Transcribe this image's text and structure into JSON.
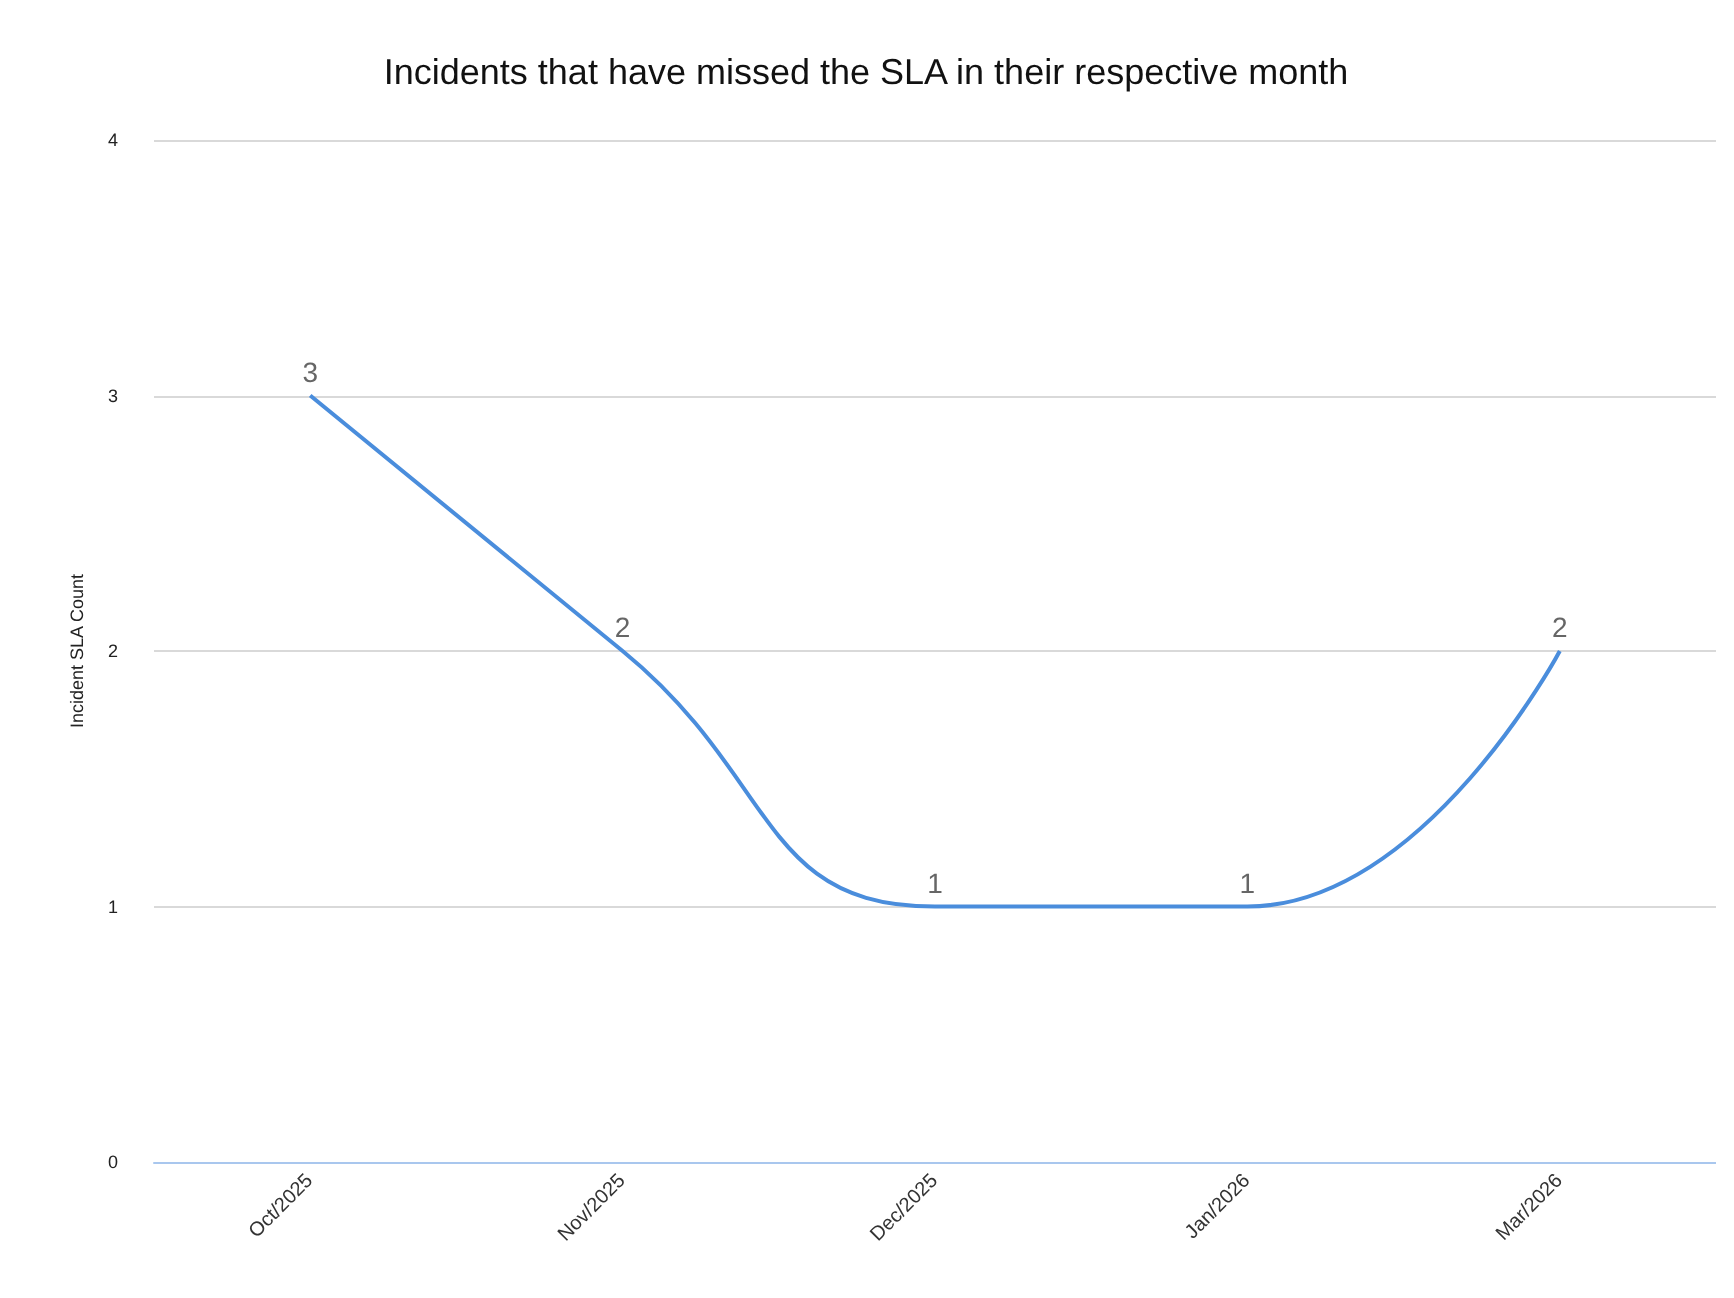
{
  "chart_data": {
    "type": "line",
    "title": "Incidents that have missed the SLA in their respective month",
    "ylabel": "Incident SLA Count",
    "categories": [
      "Oct/2025",
      "Nov/2025",
      "Dec/2025",
      "Jan/2026",
      "Mar/2026"
    ],
    "series": [
      {
        "color": "#4a8ddc",
        "values": [
          3,
          2,
          1,
          1,
          2
        ]
      }
    ],
    "ylim": [
      0,
      4
    ],
    "yticks": [
      0,
      1,
      2,
      3,
      4
    ],
    "grid": "y",
    "marker": "none",
    "data_labels": true
  }
}
